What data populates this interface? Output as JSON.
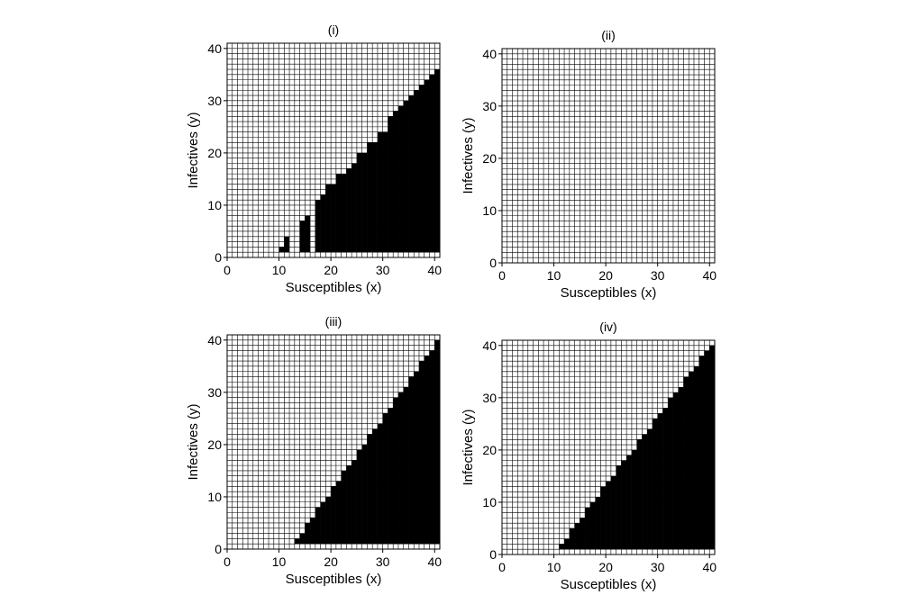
{
  "figure": {
    "type": "heatmap",
    "cell_colors": {
      "empty": "#ffffff",
      "filled": "#000000",
      "grid": "#000000"
    }
  },
  "chart_data": [
    {
      "type": "heatmap",
      "title": "(i)",
      "xlabel": "Susceptibles (x)",
      "ylabel": "Infectives (y)",
      "xlim": [
        0,
        41
      ],
      "ylim": [
        0,
        41
      ],
      "xticks": [
        "0",
        "10",
        "20",
        "30",
        "40"
      ],
      "yticks": [
        "0",
        "10",
        "20",
        "30",
        "40"
      ],
      "grid": true,
      "filled_region": {
        "stairs": [
          {
            "x": 10,
            "y_min": 1,
            "y_max": 1
          },
          {
            "x": 11,
            "y_min": 1,
            "y_max": 3
          },
          {
            "x": 14,
            "y_min": 1,
            "y_max": 6
          },
          {
            "x": 15,
            "y_min": 1,
            "y_max": 7
          },
          {
            "x": 17,
            "y_min": 1,
            "y_max": 10
          },
          {
            "x": 18,
            "y_min": 1,
            "y_max": 11
          },
          {
            "x": 19,
            "y_min": 1,
            "y_max": 13
          },
          {
            "x": 20,
            "y_min": 1,
            "y_max": 13
          },
          {
            "x": 21,
            "y_min": 1,
            "y_max": 15
          },
          {
            "x": 22,
            "y_min": 1,
            "y_max": 15
          },
          {
            "x": 23,
            "y_min": 1,
            "y_max": 16
          },
          {
            "x": 24,
            "y_min": 1,
            "y_max": 17
          },
          {
            "x": 25,
            "y_min": 1,
            "y_max": 19
          },
          {
            "x": 26,
            "y_min": 1,
            "y_max": 19
          },
          {
            "x": 27,
            "y_min": 1,
            "y_max": 21
          },
          {
            "x": 28,
            "y_min": 1,
            "y_max": 21
          },
          {
            "x": 29,
            "y_min": 1,
            "y_max": 23
          },
          {
            "x": 30,
            "y_min": 1,
            "y_max": 23
          }
        ],
        "solid": {
          "x_min": 31,
          "x_max": 40,
          "y_min": 1,
          "diagonal_y_at_x_min": 26
        }
      }
    },
    {
      "type": "heatmap",
      "title": "(ii)",
      "xlabel": "Susceptibles (x)",
      "ylabel": "Infectives (y)",
      "xlim": [
        0,
        41
      ],
      "ylim": [
        0,
        41
      ],
      "xticks": [
        "0",
        "10",
        "20",
        "30",
        "40"
      ],
      "yticks": [
        "0",
        "10",
        "20",
        "30",
        "40"
      ],
      "grid": true,
      "filled_region": null
    },
    {
      "type": "heatmap",
      "title": "(iii)",
      "xlabel": "Susceptibles (x)",
      "ylabel": "Infectives (y)",
      "xlim": [
        0,
        41
      ],
      "ylim": [
        0,
        41
      ],
      "xticks": [
        "0",
        "10",
        "20",
        "30",
        "40"
      ],
      "yticks": [
        "0",
        "10",
        "20",
        "30",
        "40"
      ],
      "grid": true,
      "filled_region": {
        "stairs": [],
        "solid": {
          "x_min": 13,
          "x_max": 40,
          "y_min": 1,
          "diagonal_y_at_x_min": 1,
          "slope": 1.4
        }
      }
    },
    {
      "type": "heatmap",
      "title": "(iv)",
      "xlabel": "Susceptibles (x)",
      "ylabel": "Infectives (y)",
      "xlim": [
        0,
        41
      ],
      "ylim": [
        0,
        41
      ],
      "xticks": [
        "0",
        "10",
        "20",
        "30",
        "40"
      ],
      "yticks": [
        "0",
        "10",
        "20",
        "30",
        "40"
      ],
      "grid": true,
      "filled_region": {
        "stairs": [],
        "solid": {
          "x_min": 11,
          "x_max": 40,
          "y_min": 1,
          "diagonal_y_at_x_min": 1,
          "slope": 1.32
        }
      }
    }
  ]
}
